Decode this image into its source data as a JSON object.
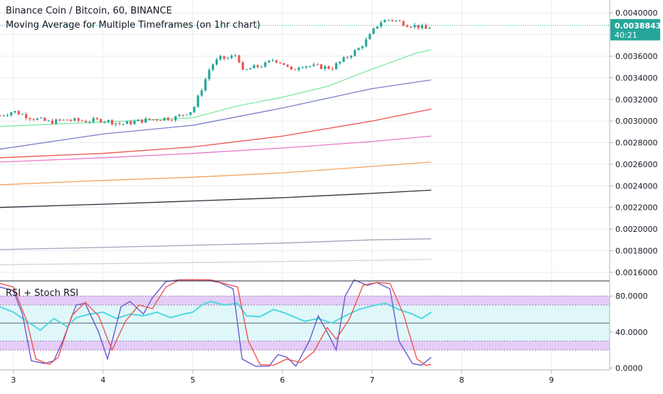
{
  "header": {
    "title": "Binance Coin / Bitcoin, 60, BINANCE",
    "subtitle": "Moving Average for Multiple Timeframes (on 1hr chart)"
  },
  "indicator": {
    "title": "RSI + Stoch RSI"
  },
  "price_badge": {
    "value": "0.0038843",
    "countdown": "40:21",
    "color": "#26a69a"
  },
  "colors": {
    "up": "#26a69a",
    "down": "#ef5350",
    "grid": "#e8edf2",
    "rsi": "#4fd8e0",
    "stoch_k": "#6a5acd",
    "stoch_d": "#ef5350",
    "band_fill": "#e0f7fa",
    "band_edge": "#e4c6f5"
  },
  "chart_data": [
    {
      "type": "line",
      "subtype": "candlestick_with_moving_averages",
      "x_tick_labels": [
        "3",
        "4",
        "5",
        "6",
        "7",
        "8",
        "9"
      ],
      "x_ticks": [
        3,
        4,
        5,
        6,
        7,
        8,
        9
      ],
      "xlim": [
        2.85,
        9.65
      ],
      "ylim": [
        0.00152,
        0.00412
      ],
      "y_tick_labels": [
        "0.0040000",
        "0.0038000",
        "0.0036000",
        "0.0034000",
        "0.0032000",
        "0.0030000",
        "0.0028000",
        "0.0026000",
        "0.0024000",
        "0.0022000",
        "0.0020000",
        "0.0018000",
        "0.0016000"
      ],
      "y_ticks": [
        0.004,
        0.0038,
        0.0036,
        0.0034,
        0.0032,
        0.003,
        0.0028,
        0.0026,
        0.0024,
        0.0022,
        0.002,
        0.0018,
        0.0016
      ],
      "grid": true,
      "last_price": 0.0038843,
      "price_path": [
        [
          2.85,
          0.00305
        ],
        [
          3.0,
          0.00309
        ],
        [
          3.2,
          0.00303
        ],
        [
          3.4,
          0.00299
        ],
        [
          3.6,
          0.00301
        ],
        [
          3.8,
          0.003
        ],
        [
          4.0,
          0.00301
        ],
        [
          4.2,
          0.00297
        ],
        [
          4.4,
          0.003
        ],
        [
          4.6,
          0.00302
        ],
        [
          4.8,
          0.00303
        ],
        [
          5.0,
          0.0031
        ],
        [
          5.1,
          0.0033
        ],
        [
          5.2,
          0.00351
        ],
        [
          5.3,
          0.00358
        ],
        [
          5.4,
          0.00358
        ],
        [
          5.5,
          0.00362
        ],
        [
          5.55,
          0.00345
        ],
        [
          5.65,
          0.00349
        ],
        [
          5.8,
          0.00352
        ],
        [
          5.9,
          0.00357
        ],
        [
          6.0,
          0.00354
        ],
        [
          6.1,
          0.00346
        ],
        [
          6.2,
          0.00352
        ],
        [
          6.3,
          0.00351
        ],
        [
          6.45,
          0.0035
        ],
        [
          6.55,
          0.00349
        ],
        [
          6.7,
          0.00358
        ],
        [
          6.85,
          0.00367
        ],
        [
          6.95,
          0.00376
        ],
        [
          7.05,
          0.00388
        ],
        [
          7.1,
          0.00392
        ],
        [
          7.2,
          0.00394
        ],
        [
          7.3,
          0.00392
        ],
        [
          7.4,
          0.00389
        ],
        [
          7.5,
          0.00388
        ],
        [
          7.6,
          0.00385
        ],
        [
          7.66,
          0.00388
        ]
      ],
      "moving_averages": [
        {
          "color": "#7ee8a2",
          "points": [
            [
              2.85,
              0.00295
            ],
            [
              4.0,
              0.00299
            ],
            [
              5.0,
              0.00303
            ],
            [
              5.5,
              0.00314
            ],
            [
              6.0,
              0.00322
            ],
            [
              6.5,
              0.00332
            ],
            [
              7.0,
              0.00348
            ],
            [
              7.5,
              0.00363
            ],
            [
              7.66,
              0.00366
            ]
          ]
        },
        {
          "color": "#7b7fc9",
          "points": [
            [
              2.85,
              0.00274
            ],
            [
              4.0,
              0.00288
            ],
            [
              5.0,
              0.00296
            ],
            [
              6.0,
              0.00312
            ],
            [
              7.0,
              0.0033
            ],
            [
              7.66,
              0.00338
            ]
          ]
        },
        {
          "color": "#ef5350",
          "points": [
            [
              2.85,
              0.00266
            ],
            [
              4.0,
              0.0027
            ],
            [
              5.0,
              0.00276
            ],
            [
              6.0,
              0.00286
            ],
            [
              7.0,
              0.003
            ],
            [
              7.66,
              0.00311
            ]
          ]
        },
        {
          "color": "#e879c9",
          "points": [
            [
              2.85,
              0.00262
            ],
            [
              4.0,
              0.00266
            ],
            [
              5.0,
              0.0027
            ],
            [
              6.0,
              0.00275
            ],
            [
              7.0,
              0.00281
            ],
            [
              7.66,
              0.00286
            ]
          ]
        },
        {
          "color": "#f4a460",
          "points": [
            [
              2.85,
              0.00241
            ],
            [
              4.0,
              0.00245
            ],
            [
              5.0,
              0.00248
            ],
            [
              6.0,
              0.00252
            ],
            [
              7.0,
              0.00258
            ],
            [
              7.66,
              0.00262
            ]
          ]
        },
        {
          "color": "#2a2e39",
          "points": [
            [
              2.85,
              0.0022
            ],
            [
              4.0,
              0.00223
            ],
            [
              5.0,
              0.00226
            ],
            [
              6.0,
              0.00229
            ],
            [
              7.0,
              0.00233
            ],
            [
              7.66,
              0.00236
            ]
          ]
        },
        {
          "color": "#9ea7b8",
          "points": [
            [
              2.85,
              0.00181
            ],
            [
              4.0,
              0.00183
            ],
            [
              5.0,
              0.00185
            ],
            [
              6.0,
              0.00187
            ],
            [
              7.0,
              0.0019
            ],
            [
              7.66,
              0.00191
            ]
          ]
        },
        {
          "color": "#d1d4dc",
          "points": [
            [
              2.85,
              0.00167
            ],
            [
              4.0,
              0.00168
            ],
            [
              5.0,
              0.00169
            ],
            [
              6.0,
              0.0017
            ],
            [
              7.0,
              0.00171
            ],
            [
              7.66,
              0.00172
            ]
          ]
        }
      ]
    },
    {
      "type": "line",
      "subtype": "rsi_stoch_rsi",
      "title": "RSI + Stoch RSI",
      "xlim": [
        2.85,
        9.65
      ],
      "ylim": [
        -2,
        96
      ],
      "y_tick_labels": [
        "80.0000",
        "40.0000",
        "0.0000"
      ],
      "y_ticks": [
        80,
        40,
        0
      ],
      "bands": {
        "outer": [
          20,
          80
        ],
        "inner": [
          30,
          70
        ],
        "middle": 50
      },
      "series": [
        {
          "key": "rsi",
          "values": [
            [
              2.85,
              68
            ],
            [
              3.0,
              62
            ],
            [
              3.15,
              52
            ],
            [
              3.3,
              42
            ],
            [
              3.45,
              55
            ],
            [
              3.6,
              46
            ],
            [
              3.7,
              56
            ],
            [
              3.85,
              60
            ],
            [
              4.0,
              62
            ],
            [
              4.15,
              55
            ],
            [
              4.3,
              60
            ],
            [
              4.45,
              58
            ],
            [
              4.6,
              62
            ],
            [
              4.75,
              56
            ],
            [
              4.9,
              60
            ],
            [
              5.0,
              62
            ],
            [
              5.1,
              70
            ],
            [
              5.2,
              74
            ],
            [
              5.35,
              70
            ],
            [
              5.5,
              72
            ],
            [
              5.6,
              58
            ],
            [
              5.75,
              57
            ],
            [
              5.9,
              65
            ],
            [
              6.0,
              62
            ],
            [
              6.1,
              58
            ],
            [
              6.25,
              52
            ],
            [
              6.4,
              55
            ],
            [
              6.55,
              50
            ],
            [
              6.7,
              58
            ],
            [
              6.85,
              65
            ],
            [
              7.0,
              69
            ],
            [
              7.15,
              72
            ],
            [
              7.3,
              65
            ],
            [
              7.45,
              60
            ],
            [
              7.55,
              55
            ],
            [
              7.66,
              62
            ]
          ]
        },
        {
          "key": "k",
          "values": [
            [
              2.85,
              90
            ],
            [
              3.0,
              86
            ],
            [
              3.1,
              60
            ],
            [
              3.2,
              8
            ],
            [
              3.35,
              5
            ],
            [
              3.45,
              8
            ],
            [
              3.55,
              30
            ],
            [
              3.7,
              70
            ],
            [
              3.8,
              72
            ],
            [
              3.95,
              40
            ],
            [
              4.05,
              10
            ],
            [
              4.2,
              68
            ],
            [
              4.3,
              74
            ],
            [
              4.45,
              60
            ],
            [
              4.55,
              78
            ],
            [
              4.7,
              96
            ],
            [
              4.85,
              98
            ],
            [
              5.0,
              98
            ],
            [
              5.15,
              98
            ],
            [
              5.3,
              95
            ],
            [
              5.45,
              88
            ],
            [
              5.55,
              10
            ],
            [
              5.7,
              2
            ],
            [
              5.85,
              2
            ],
            [
              5.95,
              15
            ],
            [
              6.05,
              12
            ],
            [
              6.15,
              2
            ],
            [
              6.3,
              30
            ],
            [
              6.4,
              58
            ],
            [
              6.5,
              40
            ],
            [
              6.6,
              20
            ],
            [
              6.7,
              80
            ],
            [
              6.8,
              98
            ],
            [
              6.95,
              92
            ],
            [
              7.05,
              95
            ],
            [
              7.2,
              88
            ],
            [
              7.3,
              30
            ],
            [
              7.45,
              5
            ],
            [
              7.55,
              3
            ],
            [
              7.66,
              12
            ]
          ]
        },
        {
          "key": "d",
          "values": [
            [
              2.85,
              94
            ],
            [
              3.0,
              90
            ],
            [
              3.15,
              52
            ],
            [
              3.25,
              10
            ],
            [
              3.4,
              4
            ],
            [
              3.5,
              12
            ],
            [
              3.65,
              58
            ],
            [
              3.8,
              73
            ],
            [
              3.95,
              58
            ],
            [
              4.1,
              20
            ],
            [
              4.25,
              52
            ],
            [
              4.4,
              70
            ],
            [
              4.55,
              66
            ],
            [
              4.7,
              90
            ],
            [
              4.85,
              98
            ],
            [
              5.0,
              98
            ],
            [
              5.2,
              98
            ],
            [
              5.35,
              94
            ],
            [
              5.5,
              90
            ],
            [
              5.62,
              30
            ],
            [
              5.75,
              4
            ],
            [
              5.9,
              3
            ],
            [
              6.05,
              10
            ],
            [
              6.2,
              6
            ],
            [
              6.35,
              18
            ],
            [
              6.5,
              45
            ],
            [
              6.6,
              32
            ],
            [
              6.75,
              55
            ],
            [
              6.9,
              92
            ],
            [
              7.05,
              95
            ],
            [
              7.2,
              94
            ],
            [
              7.35,
              60
            ],
            [
              7.5,
              10
            ],
            [
              7.6,
              3
            ],
            [
              7.66,
              4
            ]
          ]
        }
      ]
    }
  ]
}
